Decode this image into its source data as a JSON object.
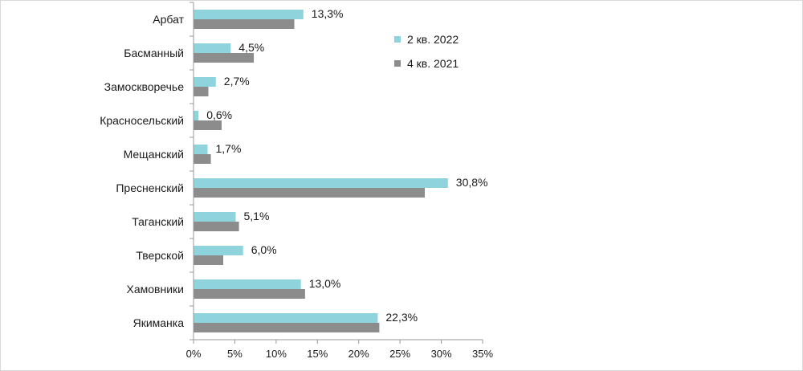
{
  "chart_data": {
    "type": "bar",
    "orientation": "horizontal",
    "categories": [
      "Арбат",
      "Басманный",
      "Замоскворечье",
      "Красносельский",
      "Мещанский",
      "Пресненский",
      "Таганский",
      "Тверской",
      "Хамовники",
      "Якиманка"
    ],
    "series": [
      {
        "name": "2 кв. 2022",
        "color": "#8fd3dc",
        "values": [
          13.3,
          4.5,
          2.7,
          0.6,
          1.7,
          30.8,
          5.1,
          6.0,
          13.0,
          22.3
        ],
        "labels": [
          "13,3%",
          "4,5%",
          "2,7%",
          "0,6%",
          "1,7%",
          "30,8%",
          "5,1%",
          "6,0%",
          "13,0%",
          "22,3%"
        ]
      },
      {
        "name": "4 кв. 2021",
        "color": "#8c8c8c",
        "values": [
          12.2,
          7.3,
          1.8,
          3.4,
          2.1,
          28.0,
          5.5,
          3.6,
          13.5,
          22.5
        ]
      }
    ],
    "xlim": [
      0,
      35
    ],
    "xticks": [
      0,
      5,
      10,
      15,
      20,
      25,
      30,
      35
    ],
    "xtick_labels": [
      "0%",
      "5%",
      "10%",
      "15%",
      "20%",
      "25%",
      "30%",
      "35%"
    ],
    "legend_position": "top-right",
    "grid": false
  }
}
